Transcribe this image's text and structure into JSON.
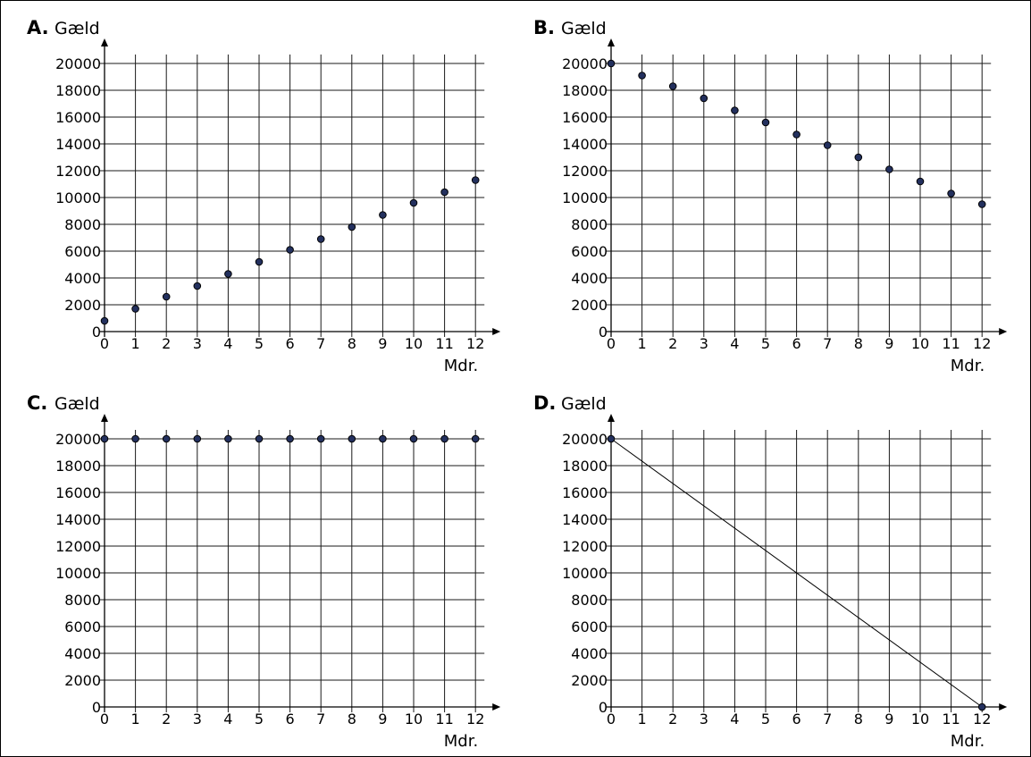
{
  "chart_data": [
    {
      "type": "scatter",
      "letter": "A.",
      "ylabel": "Gæld",
      "xlabel": "Mdr.",
      "xlim": [
        0,
        12
      ],
      "ylim": [
        0,
        20000
      ],
      "grid": true,
      "x_ticks": [
        "0",
        "1",
        "2",
        "3",
        "4",
        "5",
        "6",
        "7",
        "8",
        "9",
        "10",
        "11",
        "12"
      ],
      "y_ticks": [
        "0",
        "2000",
        "4000",
        "6000",
        "8000",
        "10000",
        "12000",
        "14000",
        "16000",
        "18000",
        "20000"
      ],
      "series": [
        {
          "x": [
            0,
            1,
            2,
            3,
            4,
            5,
            6,
            7,
            8,
            9,
            10,
            11,
            12
          ],
          "y": [
            800,
            1700,
            2600,
            3400,
            4300,
            5200,
            6100,
            6900,
            7800,
            8700,
            9600,
            10400,
            11300
          ]
        }
      ]
    },
    {
      "type": "scatter",
      "letter": "B.",
      "ylabel": "Gæld",
      "xlabel": "Mdr.",
      "xlim": [
        0,
        12
      ],
      "ylim": [
        0,
        20000
      ],
      "grid": true,
      "x_ticks": [
        "0",
        "1",
        "2",
        "3",
        "4",
        "5",
        "6",
        "7",
        "8",
        "9",
        "10",
        "11",
        "12"
      ],
      "y_ticks": [
        "0",
        "2000",
        "4000",
        "6000",
        "8000",
        "10000",
        "12000",
        "14000",
        "16000",
        "18000",
        "20000"
      ],
      "series": [
        {
          "x": [
            0,
            1,
            2,
            3,
            4,
            5,
            6,
            7,
            8,
            9,
            10,
            11,
            12
          ],
          "y": [
            20000,
            19100,
            18300,
            17400,
            16500,
            15600,
            14700,
            13900,
            13000,
            12100,
            11200,
            10300,
            9500
          ]
        }
      ]
    },
    {
      "type": "scatter",
      "letter": "C.",
      "ylabel": "Gæld",
      "xlabel": "Mdr.",
      "xlim": [
        0,
        12
      ],
      "ylim": [
        0,
        20000
      ],
      "grid": true,
      "x_ticks": [
        "0",
        "1",
        "2",
        "3",
        "4",
        "5",
        "6",
        "7",
        "8",
        "9",
        "10",
        "11",
        "12"
      ],
      "y_ticks": [
        "0",
        "2000",
        "4000",
        "6000",
        "8000",
        "10000",
        "12000",
        "14000",
        "16000",
        "18000",
        "20000"
      ],
      "series": [
        {
          "x": [
            0,
            1,
            2,
            3,
            4,
            5,
            6,
            7,
            8,
            9,
            10,
            11,
            12
          ],
          "y": [
            20000,
            20000,
            20000,
            20000,
            20000,
            20000,
            20000,
            20000,
            20000,
            20000,
            20000,
            20000,
            20000
          ]
        }
      ]
    },
    {
      "type": "line",
      "letter": "D.",
      "ylabel": "Gæld",
      "xlabel": "Mdr.",
      "xlim": [
        0,
        12
      ],
      "ylim": [
        0,
        20000
      ],
      "grid": true,
      "x_ticks": [
        "0",
        "1",
        "2",
        "3",
        "4",
        "5",
        "6",
        "7",
        "8",
        "9",
        "10",
        "11",
        "12"
      ],
      "y_ticks": [
        "0",
        "2000",
        "4000",
        "6000",
        "8000",
        "10000",
        "12000",
        "14000",
        "16000",
        "18000",
        "20000"
      ],
      "series": [
        {
          "x": [
            0,
            12
          ],
          "y": [
            20000,
            0
          ],
          "endpoint_markers": true
        }
      ]
    }
  ]
}
